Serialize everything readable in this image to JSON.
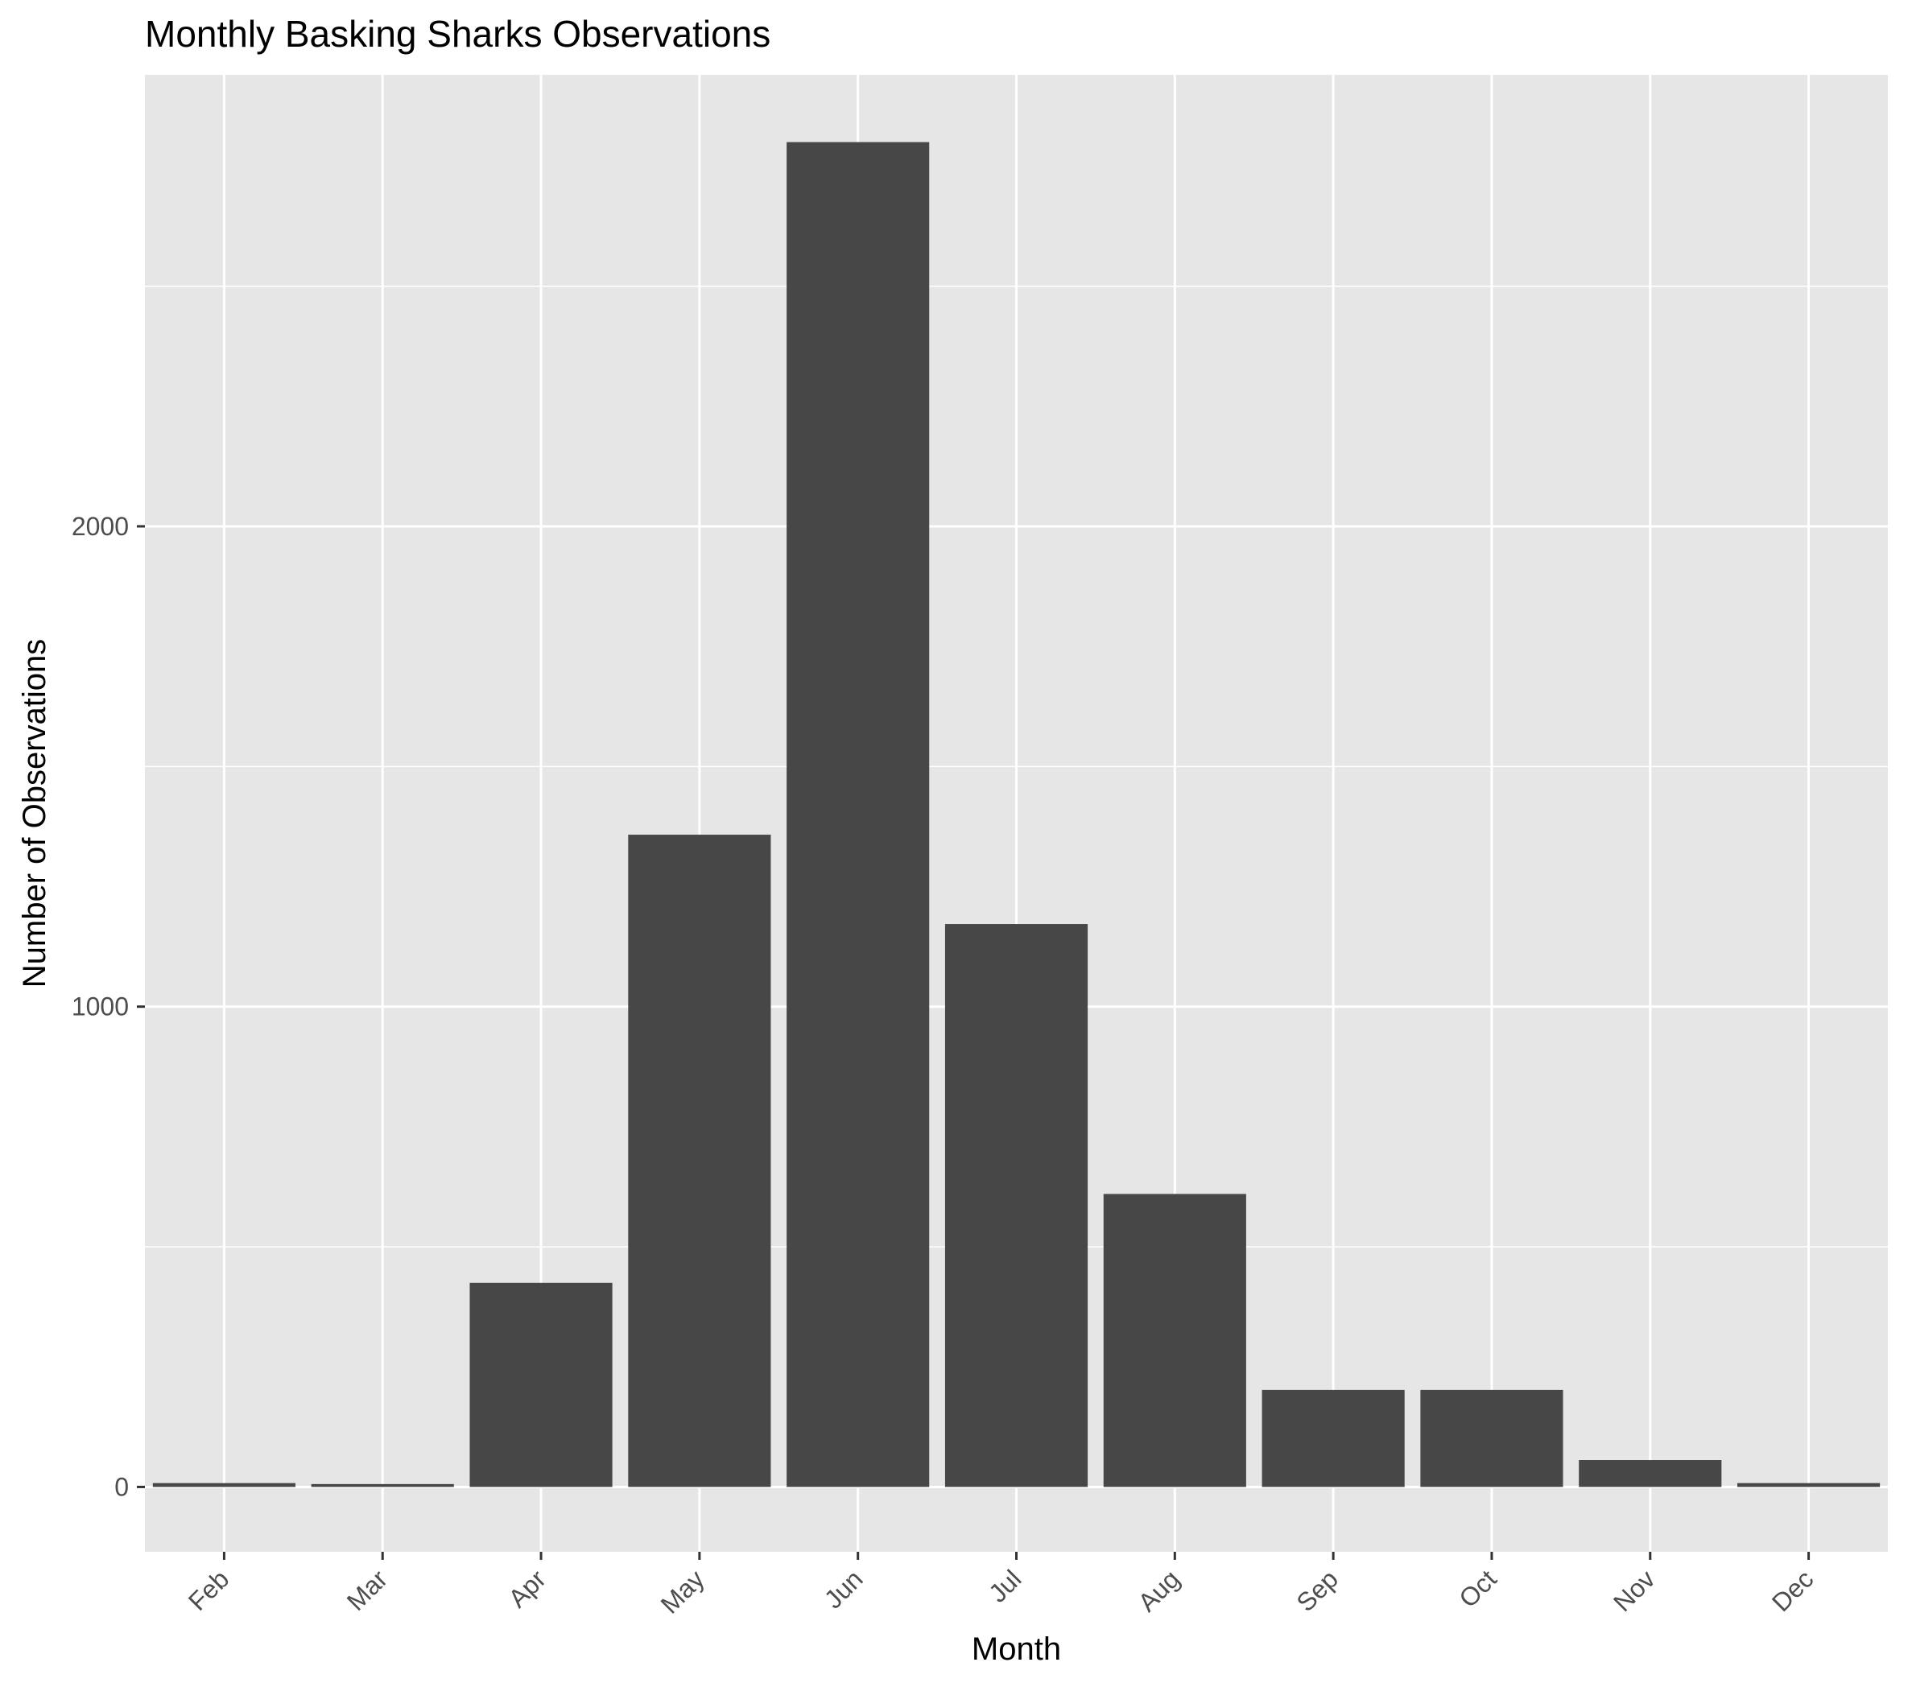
{
  "chart_data": {
    "type": "bar",
    "title": "Monthly Basking Sharks Observations",
    "xlabel": "Month",
    "ylabel": "Number of Observations",
    "categories": [
      "Feb",
      "Mar",
      "Apr",
      "May",
      "Jun",
      "Jul",
      "Aug",
      "Sep",
      "Oct",
      "Nov",
      "Dec"
    ],
    "values": [
      8,
      6,
      425,
      1358,
      2800,
      1172,
      610,
      202,
      202,
      56,
      8
    ],
    "y_ticks": [
      0,
      1000,
      2000
    ],
    "ylim": [
      -135,
      2940
    ],
    "grid": true,
    "legend": "none",
    "colors": {
      "bar": "#474747",
      "panel": "#e6e6e6",
      "grid": "#ffffff",
      "text": "#4d4d4d",
      "title": "#000000"
    }
  }
}
